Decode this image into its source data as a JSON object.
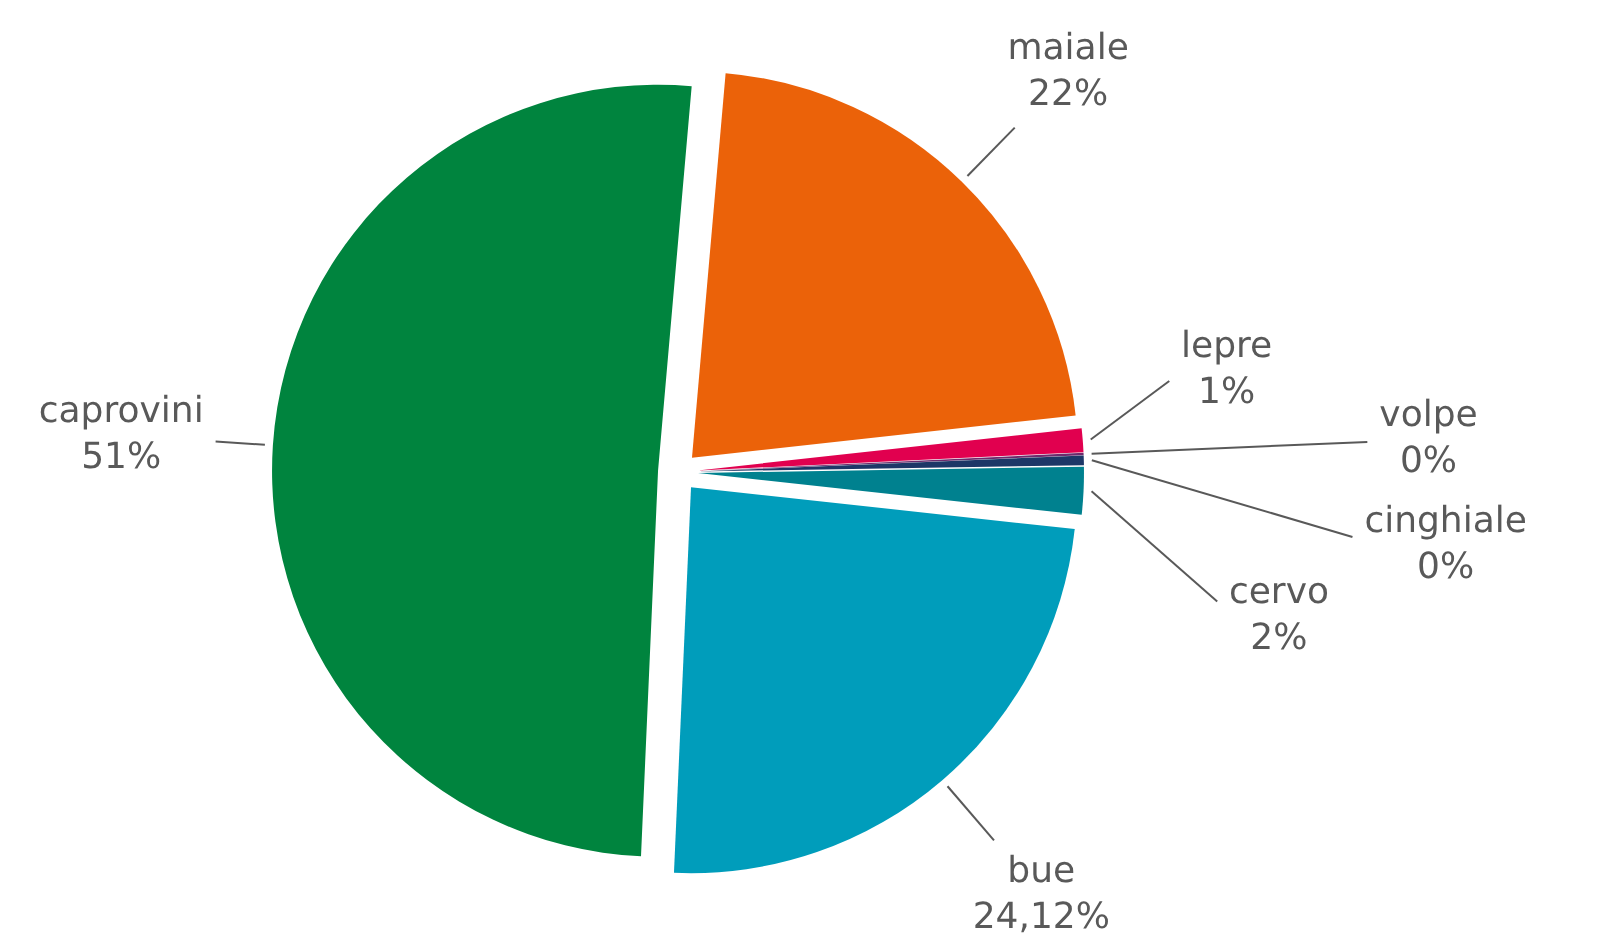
{
  "chart_data": {
    "type": "pie",
    "categories": [
      "maiale",
      "lepre",
      "volpe",
      "cinghiale",
      "cervo",
      "bue",
      "caprovini"
    ],
    "values": [
      22,
      1,
      0.1,
      0.4,
      2,
      24.12,
      51
    ],
    "colors": [
      "#eb6209",
      "#e1004f",
      "#6e2a6c",
      "#1d3767",
      "#00818f",
      "#009dbb",
      "#00843e"
    ],
    "value_labels": [
      "22%",
      "1%",
      "0%",
      "0%",
      "2%",
      "24,12%",
      "51%"
    ]
  }
}
